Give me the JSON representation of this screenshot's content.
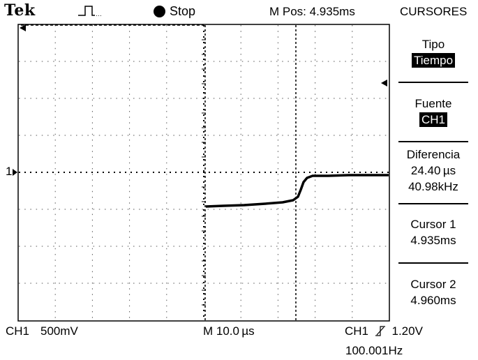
{
  "header": {
    "brand": "Tek",
    "trigger_icon": "trigger-pulse-icon",
    "run_state": "Stop",
    "m_pos": "M Pos: 4.935ms",
    "menu_title": "CURSORES"
  },
  "side_menu": {
    "type_label": "Tipo",
    "type_value": "Tiempo",
    "source_label": "Fuente",
    "source_value": "CH1",
    "difference_label": "Diferencia",
    "difference_time": "24.40 µs",
    "difference_freq": "40.98kHz",
    "cursor1_label": "Cursor 1",
    "cursor1_value": "4.935ms",
    "cursor2_label": "Cursor 2",
    "cursor2_value": "4.960ms"
  },
  "status_bar": {
    "ch1_label": "CH1",
    "ch1_scale": "500mV",
    "timebase": "M 10.0 µs",
    "trigger_source": "CH1",
    "trigger_level": "1.20V",
    "trigger_freq": "100.001Hz"
  },
  "markers": {
    "ch1_ground": "1"
  },
  "colors": {
    "background": "#ffffff",
    "foreground": "#000000",
    "grid": "#555555"
  }
}
